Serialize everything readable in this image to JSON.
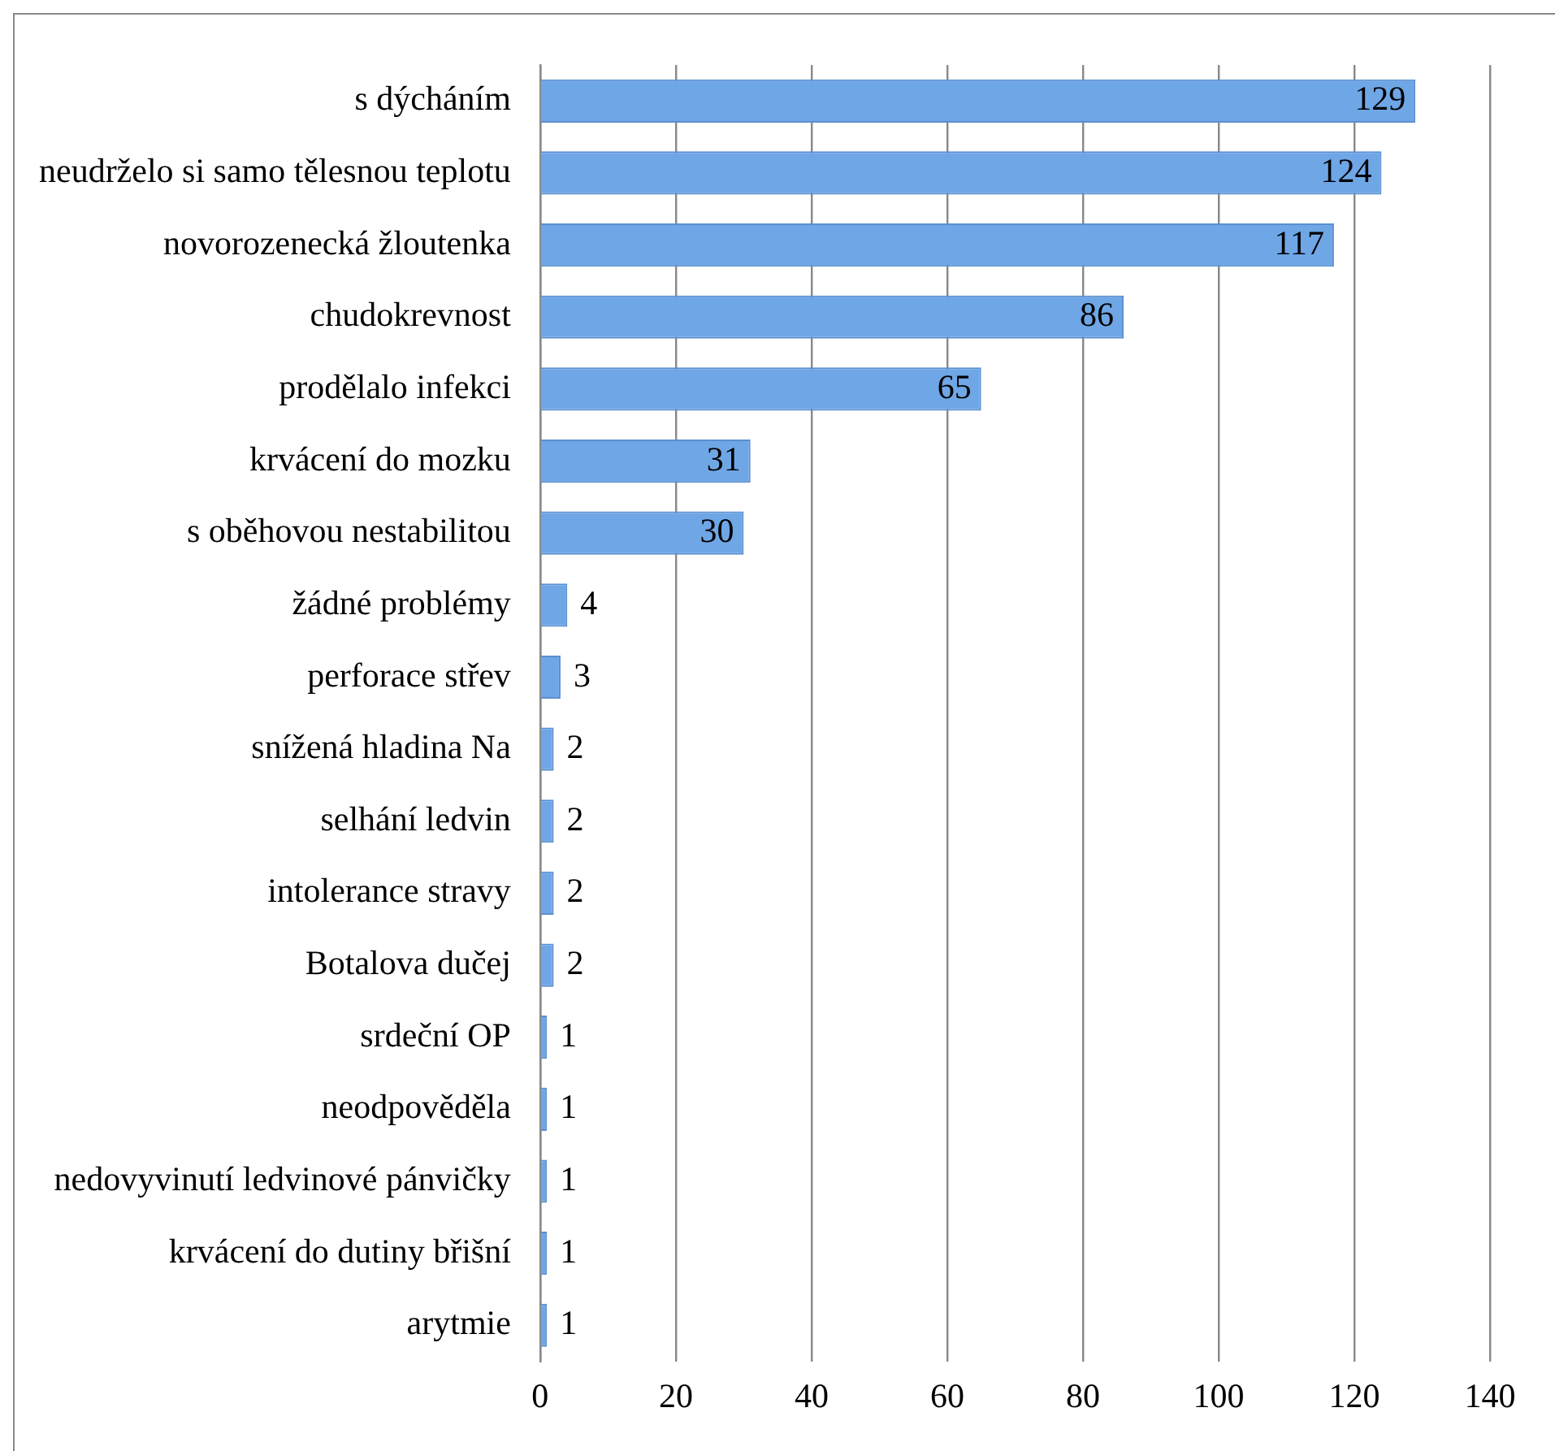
{
  "chart_data": {
    "type": "bar",
    "orientation": "horizontal",
    "categories": [
      "s dýcháním",
      "neudrželo si samo tělesnou teplotu",
      "novorozenecká žloutenka",
      "chudokrevnost",
      "prodělalo infekci",
      "krvácení do mozku",
      "s oběhovou nestabilitou",
      "žádné problémy",
      "perforace střev",
      "snížená hladina Na",
      "selhání ledvin",
      "intolerance stravy",
      "Botalova dučej",
      "srdeční OP",
      "neodpověděla",
      "nedovyvinutí ledvinové pánvičky",
      "krvácení do dutiny břišní",
      "arytmie"
    ],
    "values": [
      129,
      124,
      117,
      86,
      65,
      31,
      30,
      4,
      3,
      2,
      2,
      2,
      2,
      1,
      1,
      1,
      1,
      1
    ],
    "color": "#6fa6e6",
    "xlim": [
      0,
      140
    ],
    "xticks": [
      0,
      20,
      40,
      60,
      80,
      100,
      120,
      140
    ],
    "grid": "x",
    "legend": false,
    "data_labels": true
  }
}
